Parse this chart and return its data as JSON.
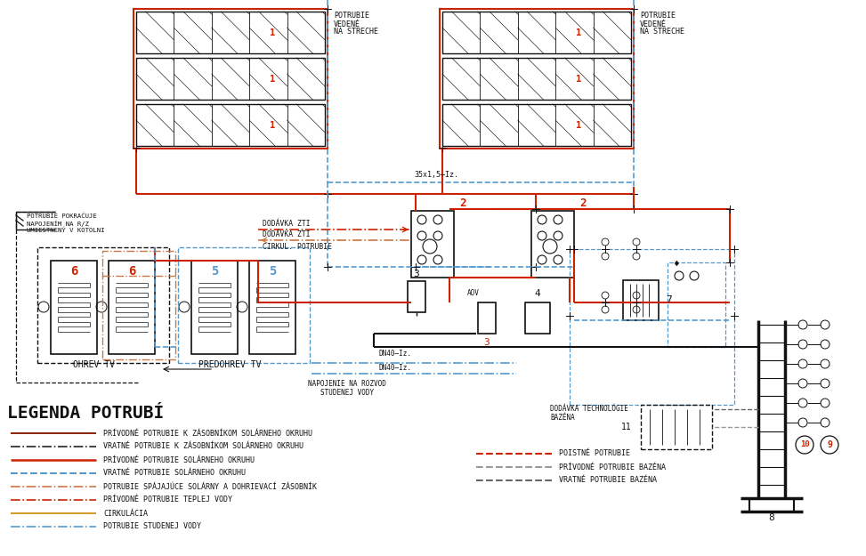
{
  "bg_color": "#ffffff",
  "black": "#111111",
  "red": "#cc2200",
  "blue": "#5599cc",
  "orange": "#cc8800",
  "orange2": "#cc7744",
  "gray": "#999999",
  "dgray": "#666666",
  "legend_title": "LEGENDA POTRUBÍ",
  "legend_left": [
    {
      "label": "PRÍVODNÉ POTRUBIE K ZÁSOBNÍKOM SOLÁRNEHO OKRUHU",
      "color": "#882200",
      "ls": "solid",
      "lw": 1.4
    },
    {
      "label": "VRATNÉ POTRUBIE K ZÁSOBNÍKOM SOLÁRNEHO OKRUHU",
      "color": "#222222",
      "ls": "dashdot",
      "lw": 1.2
    },
    {
      "label": "PRÍVODNÉ POTRUBIE SOLÁRNEHO OKRUHU",
      "color": "#cc2200",
      "ls": "solid",
      "lw": 1.8
    },
    {
      "label": "VRATNÉ POTRUBIE SOLÁRNEHO OKRUHU",
      "color": "#5599cc",
      "ls": "dashed",
      "lw": 1.5
    },
    {
      "label": "POTRUBIE SPÁJAJÚCE SOLÁRNY A DOHRIEVACÍ ZÁSOBNÍK",
      "color": "#cc7744",
      "ls": "dashdot",
      "lw": 1.2
    },
    {
      "label": "PRÍVODNÉ POTRUBIE TEPLEJ VODY",
      "color": "#cc2200",
      "ls": "dashdot",
      "lw": 1.2
    },
    {
      "label": "CIRKULÁCIA",
      "color": "#cc8800",
      "ls": "solid",
      "lw": 1.2
    },
    {
      "label": "POTRUBIE STUDENEJ VODY",
      "color": "#5599cc",
      "ls": "dashdot",
      "lw": 1.2
    }
  ],
  "legend_right": [
    {
      "label": "POISTNÉ POTRUBIE",
      "color": "#cc2200",
      "ls": "dashed",
      "lw": 1.5
    },
    {
      "label": "PRÍVODNÉ POTRUBIE BAZÉNA",
      "color": "#999999",
      "ls": "dashed",
      "lw": 1.5
    },
    {
      "label": "VRATNÉ POTRUBIE BAZÉNA",
      "color": "#666666",
      "ls": "dashed",
      "lw": 1.5
    }
  ]
}
